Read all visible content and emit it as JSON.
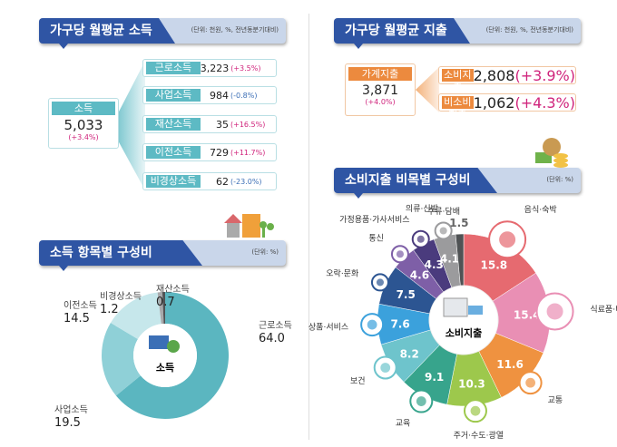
{
  "income": {
    "title": "가구당 월평균 소득",
    "unit": "(단위: 천원, %, 전년동분기대비)",
    "total": {
      "label": "소득",
      "value": "5,033",
      "change": "(+3.4%)"
    },
    "items": [
      {
        "label": "근로소득",
        "value": "3,223",
        "change": "(+3.5%)",
        "dir": "pos"
      },
      {
        "label": "사업소득",
        "value": "984",
        "change": "(-0.8%)",
        "dir": "neg"
      },
      {
        "label": "재산소득",
        "value": "35",
        "change": "(+16.5%)",
        "dir": "pos"
      },
      {
        "label": "이전소득",
        "value": "729",
        "change": "(+11.7%)",
        "dir": "pos"
      },
      {
        "label": "비경상소득",
        "value": "62",
        "change": "(-23.0%)",
        "dir": "neg"
      }
    ]
  },
  "expense": {
    "title": "가구당 월평균 지출",
    "unit": "(단위: 천원, %, 전년동분기대비)",
    "total": {
      "label": "가계지출",
      "value": "3,871",
      "change": "(+4.0%)"
    },
    "items": [
      {
        "label": "소비지출",
        "value": "2,808",
        "change": "(+3.9%)",
        "dir": "pos"
      },
      {
        "label": "비소비지출",
        "value": "1,062",
        "change": "(+4.3%)",
        "dir": "pos"
      }
    ]
  },
  "income_comp": {
    "title": "소득 항목별 구성비",
    "unit": "(단위: %)"
  },
  "consumption_comp": {
    "title": "소비지출 비목별 구성비",
    "unit": "(단위: %)"
  },
  "chart_data": [
    {
      "type": "pie",
      "donut": true,
      "center_label": "소득",
      "center_icon": "laptop-money-icon",
      "categories": [
        "근로소득",
        "사업소득",
        "이전소득",
        "비경상소득",
        "재산소득"
      ],
      "values": [
        64.0,
        19.5,
        14.5,
        1.2,
        0.7
      ],
      "colors": [
        "#5bb6c0",
        "#8fd0d7",
        "#c6e7eb",
        "#a7a9ab",
        "#4f5254"
      ]
    },
    {
      "type": "pie",
      "donut": true,
      "center_label": "소비지출",
      "center_icon": "receipt-card-icon",
      "categories": [
        "음식·숙박",
        "식료품·비주류음료",
        "교통",
        "주거·수도·광열",
        "교육",
        "보건",
        "기타상품·서비스",
        "오락·문화",
        "통신",
        "가정용품·가사서비스",
        "의류·신발",
        "주류·담배"
      ],
      "values": [
        15.8,
        15.4,
        11.6,
        10.3,
        9.1,
        8.2,
        7.6,
        7.5,
        4.6,
        4.3,
        4.1,
        1.5
      ],
      "icons": [
        "food-icon",
        "grocery-icon",
        "car-icon",
        "house-icon",
        "graduation-cap-icon",
        "first-aid-icon",
        "service-icon",
        "entertainment-icon",
        "phone-icon",
        "household-icon",
        "clothing-icon",
        "liquor-icon"
      ],
      "colors": [
        "#e66a70",
        "#e98fb4",
        "#ef9240",
        "#9dc84c",
        "#37a48c",
        "#6ec4cc",
        "#3ba1dc",
        "#2c5592",
        "#7e5fa7",
        "#4a3b7d",
        "#9b9b9d",
        "#4f5254"
      ]
    }
  ]
}
